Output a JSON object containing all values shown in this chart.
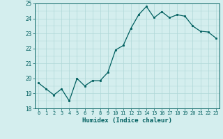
{
  "x": [
    0,
    1,
    2,
    3,
    4,
    5,
    6,
    7,
    8,
    9,
    10,
    11,
    12,
    13,
    14,
    15,
    16,
    17,
    18,
    19,
    20,
    21,
    22,
    23
  ],
  "y": [
    19.7,
    19.3,
    18.9,
    19.3,
    18.5,
    20.0,
    19.5,
    19.85,
    19.85,
    20.4,
    21.9,
    22.2,
    23.35,
    24.25,
    24.8,
    24.05,
    24.45,
    24.05,
    24.25,
    24.15,
    23.5,
    23.15,
    23.1,
    22.7
  ],
  "xlabel": "Humidex (Indice chaleur)",
  "ylim": [
    18,
    25
  ],
  "xlim": [
    -0.5,
    23.5
  ],
  "yticks": [
    18,
    19,
    20,
    21,
    22,
    23,
    24,
    25
  ],
  "xticks": [
    0,
    1,
    2,
    3,
    4,
    5,
    6,
    7,
    8,
    9,
    10,
    11,
    12,
    13,
    14,
    15,
    16,
    17,
    18,
    19,
    20,
    21,
    22,
    23
  ],
  "xtick_labels": [
    "0",
    "1",
    "2",
    "3",
    "4",
    "5",
    "6",
    "7",
    "8",
    "9",
    "10",
    "11",
    "12",
    "13",
    "14",
    "15",
    "16",
    "17",
    "18",
    "19",
    "20",
    "21",
    "22",
    "23"
  ],
  "line_color": "#005f5f",
  "marker_color": "#005f5f",
  "bg_color": "#d4eeee",
  "grid_color": "#b0d8d8",
  "tick_color": "#005f5f",
  "label_color": "#005f5f"
}
